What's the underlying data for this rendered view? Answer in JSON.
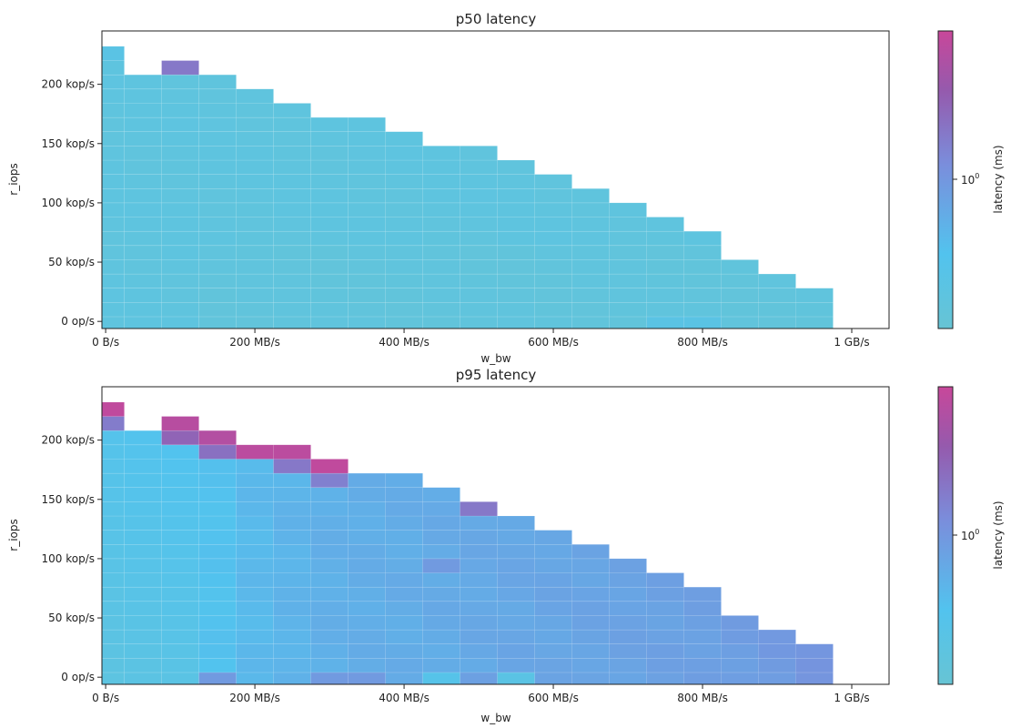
{
  "colors": {
    "low": "#5ec6de",
    "mid": "#7b8ad8",
    "high": "#c84695",
    "background": "#ffffff",
    "axis": "#222222"
  },
  "chart_data": [
    {
      "type": "heatmap",
      "title": "p50 latency",
      "xlabel": "w_bw",
      "ylabel": "r_iops",
      "colorbar_label": "latency (ms)",
      "colorbar_tick": "10",
      "colorbar_tick_exp": "0",
      "color_scale": "log",
      "xticks": [
        {
          "value": 0,
          "label": "0 B/s"
        },
        {
          "value": 200,
          "label": "200 MB/s"
        },
        {
          "value": 400,
          "label": "400 MB/s"
        },
        {
          "value": 600,
          "label": "600 MB/s"
        },
        {
          "value": 800,
          "label": "800 MB/s"
        },
        {
          "value": 1000,
          "label": "1 GB/s"
        }
      ],
      "yticks": [
        {
          "value": 0,
          "label": "0 op/s"
        },
        {
          "value": 50,
          "label": "50 kop/s"
        },
        {
          "value": 100,
          "label": "100 kop/s"
        },
        {
          "value": 150,
          "label": "150 kop/s"
        },
        {
          "value": 200,
          "label": "200 kop/s"
        }
      ],
      "x_unit": "MB/s",
      "y_unit": "kop/s",
      "xlim": [
        -5,
        1050
      ],
      "ylim": [
        -6,
        245
      ],
      "bin_width_mb": 50,
      "row_height_kops": 12,
      "column_max_rops_kops": [
        238,
        214,
        226,
        214,
        202,
        190,
        178,
        178,
        166,
        154,
        154,
        142,
        130,
        118,
        106,
        94,
        82,
        58,
        46,
        34
      ],
      "default_latency_ms": 0.25,
      "latency_range_ms": [
        0.18,
        5.0
      ],
      "hot_cells": [
        {
          "w_bw": 0,
          "r_iops": 226,
          "latency_ms": 0.3
        },
        {
          "w_bw": 100,
          "r_iops": 214,
          "latency_ms": 1.6
        },
        {
          "w_bw": 250,
          "r_iops": 190,
          "latency_ms": 0.9
        },
        {
          "w_bw": 300,
          "r_iops": 178,
          "latency_ms": 0.6
        },
        {
          "w_bw": 1000,
          "r_iops": 22,
          "latency_ms": 0.5
        },
        {
          "w_bw": 1000,
          "r_iops": 10,
          "latency_ms": 0.3
        },
        {
          "w_bw": 800,
          "r_iops": -2,
          "latency_ms": 0.3
        },
        {
          "w_bw": 750,
          "r_iops": -2,
          "latency_ms": 0.3
        }
      ]
    },
    {
      "type": "heatmap",
      "title": "p95 latency",
      "xlabel": "w_bw",
      "ylabel": "r_iops",
      "colorbar_label": "latency (ms)",
      "colorbar_tick": "10",
      "colorbar_tick_exp": "0",
      "color_scale": "log",
      "xticks": [
        {
          "value": 0,
          "label": "0 B/s"
        },
        {
          "value": 200,
          "label": "200 MB/s"
        },
        {
          "value": 400,
          "label": "400 MB/s"
        },
        {
          "value": 600,
          "label": "600 MB/s"
        },
        {
          "value": 800,
          "label": "800 MB/s"
        },
        {
          "value": 1000,
          "label": "1 GB/s"
        }
      ],
      "yticks": [
        {
          "value": 0,
          "label": "0 op/s"
        },
        {
          "value": 50,
          "label": "50 kop/s"
        },
        {
          "value": 100,
          "label": "100 kop/s"
        },
        {
          "value": 150,
          "label": "150 kop/s"
        },
        {
          "value": 200,
          "label": "200 kop/s"
        }
      ],
      "x_unit": "MB/s",
      "y_unit": "kop/s",
      "xlim": [
        -5,
        1050
      ],
      "ylim": [
        -6,
        245
      ],
      "bin_width_mb": 50,
      "row_height_kops": 12,
      "column_max_rops_kops": [
        238,
        214,
        226,
        214,
        202,
        202,
        190,
        178,
        178,
        166,
        154,
        142,
        130,
        118,
        106,
        94,
        82,
        58,
        46,
        34
      ],
      "column_base_latency_ms": [
        0.3,
        0.32,
        0.34,
        0.42,
        0.5,
        0.55,
        0.6,
        0.62,
        0.63,
        0.65,
        0.68,
        0.7,
        0.72,
        0.74,
        0.76,
        0.78,
        0.8,
        0.84,
        0.88,
        0.95
      ],
      "latency_range_ms": [
        0.18,
        5.0
      ],
      "hot_cells": [
        {
          "w_bw": 0,
          "r_iops": 226,
          "latency_ms": 4.5
        },
        {
          "w_bw": 0,
          "r_iops": 214,
          "latency_ms": 1.5
        },
        {
          "w_bw": 100,
          "r_iops": 214,
          "latency_ms": 4.0
        },
        {
          "w_bw": 100,
          "r_iops": 202,
          "latency_ms": 2.2
        },
        {
          "w_bw": 150,
          "r_iops": 202,
          "latency_ms": 3.8
        },
        {
          "w_bw": 150,
          "r_iops": 190,
          "latency_ms": 1.8
        },
        {
          "w_bw": 200,
          "r_iops": 190,
          "latency_ms": 4.2
        },
        {
          "w_bw": 250,
          "r_iops": 190,
          "latency_ms": 4.2
        },
        {
          "w_bw": 250,
          "r_iops": 178,
          "latency_ms": 1.6
        },
        {
          "w_bw": 300,
          "r_iops": 178,
          "latency_ms": 4.5
        },
        {
          "w_bw": 300,
          "r_iops": 166,
          "latency_ms": 1.4
        },
        {
          "w_bw": 500,
          "r_iops": 142,
          "latency_ms": 1.6
        },
        {
          "w_bw": 550,
          "r_iops": 142,
          "latency_ms": 1.6
        },
        {
          "w_bw": 650,
          "r_iops": 118,
          "latency_ms": 1.8
        },
        {
          "w_bw": 950,
          "r_iops": 34,
          "latency_ms": 1.8
        },
        {
          "w_bw": 1000,
          "r_iops": 22,
          "latency_ms": 2.0
        },
        {
          "w_bw": 450,
          "r_iops": 94,
          "latency_ms": 0.9
        },
        {
          "w_bw": 150,
          "r_iops": -2,
          "latency_ms": 0.9
        },
        {
          "w_bw": 300,
          "r_iops": -2,
          "latency_ms": 0.9
        },
        {
          "w_bw": 350,
          "r_iops": -2,
          "latency_ms": 0.9
        },
        {
          "w_bw": 450,
          "r_iops": -2,
          "latency_ms": 0.35
        },
        {
          "w_bw": 500,
          "r_iops": -2,
          "latency_ms": 0.8
        },
        {
          "w_bw": 550,
          "r_iops": -2,
          "latency_ms": 0.3
        }
      ]
    }
  ]
}
